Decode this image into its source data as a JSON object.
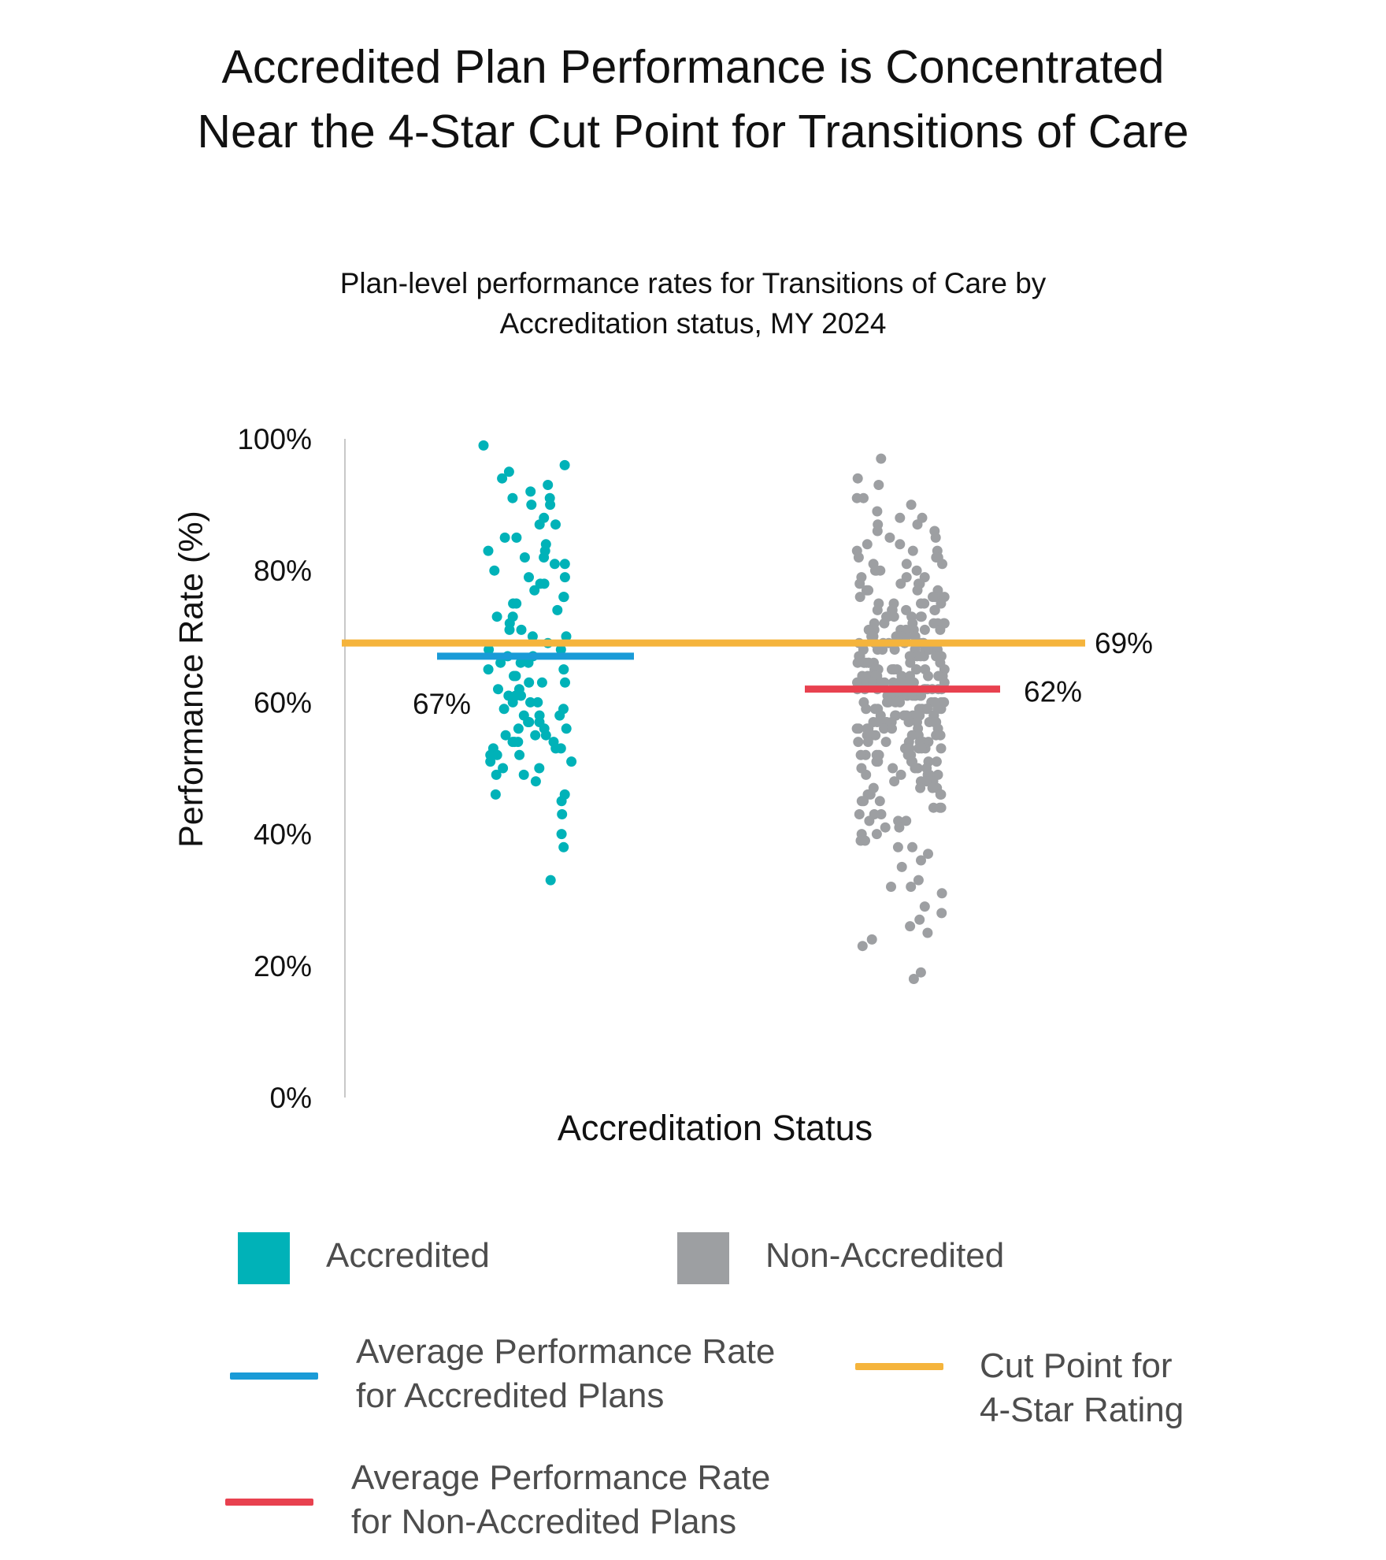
{
  "title": [
    "Accredited Plan Performance is Concentrated",
    "Near the 4-Star Cut Point for Transitions of Care"
  ],
  "subtitle": [
    "Plan-level performance rates for Transitions of Care by",
    "Accreditation status, MY 2024"
  ],
  "colors": {
    "accredited": "#00b2b8",
    "non_accredited": "#9d9fa2",
    "avg_accredited": "#1a9bd7",
    "avg_non_accredited": "#e8414f",
    "cut_point": "#f5b43c",
    "axis": "#c8c8c8"
  },
  "chart_data": {
    "type": "scatter",
    "xlabel": "Accreditation Status",
    "ylabel": "Performance Rate (%)",
    "ylim": [
      0,
      100
    ],
    "yticks": [
      "0%",
      "20%",
      "40%",
      "60%",
      "80%",
      "100%"
    ],
    "grid": false,
    "cut_point": {
      "value": 69,
      "label": "69%"
    },
    "averages": [
      {
        "group": "Accredited",
        "value": 67,
        "label": "67%"
      },
      {
        "group": "Non-Accredited",
        "value": 62,
        "label": "62%"
      }
    ],
    "series": [
      {
        "name": "Accredited",
        "values": [
          99,
          96,
          95,
          94,
          93,
          92,
          91,
          91,
          90,
          90,
          88,
          87,
          87,
          85,
          85,
          84,
          83,
          83,
          82,
          82,
          81,
          81,
          80,
          79,
          79,
          78,
          78,
          77,
          76,
          76,
          75,
          75,
          74,
          73,
          73,
          72,
          71,
          71,
          70,
          70,
          69,
          68,
          68,
          67,
          67,
          66,
          66,
          66,
          65,
          65,
          64,
          64,
          63,
          63,
          63,
          62,
          62,
          61,
          61,
          61,
          60,
          60,
          60,
          59,
          59,
          58,
          58,
          58,
          57,
          57,
          57,
          56,
          56,
          56,
          55,
          55,
          55,
          54,
          54,
          54,
          54,
          53,
          53,
          53,
          52,
          52,
          52,
          51,
          51,
          50,
          50,
          49,
          49,
          48,
          46,
          46,
          45,
          43,
          40,
          38,
          33
        ]
      },
      {
        "name": "Non-Accredited",
        "values": [
          97,
          94,
          93,
          91,
          91,
          90,
          89,
          88,
          88,
          87,
          87,
          86,
          86,
          85,
          85,
          84,
          84,
          83,
          83,
          83,
          82,
          82,
          82,
          81,
          81,
          81,
          80,
          80,
          80,
          80,
          79,
          79,
          79,
          78,
          78,
          78,
          78,
          77,
          77,
          77,
          77,
          76,
          76,
          76,
          76,
          76,
          75,
          75,
          75,
          75,
          75,
          74,
          74,
          74,
          74,
          74,
          74,
          73,
          73,
          73,
          73,
          73,
          73,
          72,
          72,
          72,
          72,
          72,
          72,
          72,
          71,
          71,
          71,
          71,
          71,
          71,
          71,
          70,
          70,
          70,
          70,
          70,
          70,
          70,
          70,
          69,
          69,
          69,
          69,
          69,
          69,
          69,
          69,
          68,
          68,
          68,
          68,
          68,
          68,
          68,
          68,
          67,
          67,
          67,
          67,
          67,
          67,
          67,
          67,
          67,
          66,
          66,
          66,
          66,
          66,
          66,
          66,
          66,
          66,
          65,
          65,
          65,
          65,
          65,
          65,
          65,
          65,
          65,
          65,
          64,
          64,
          64,
          64,
          64,
          64,
          64,
          64,
          64,
          64,
          63,
          63,
          63,
          63,
          63,
          63,
          63,
          63,
          63,
          63,
          63,
          62,
          62,
          62,
          62,
          62,
          62,
          62,
          62,
          62,
          62,
          62,
          61,
          61,
          61,
          61,
          61,
          61,
          61,
          61,
          61,
          61,
          61,
          60,
          60,
          60,
          60,
          60,
          60,
          60,
          60,
          60,
          60,
          60,
          59,
          59,
          59,
          59,
          59,
          59,
          59,
          59,
          59,
          59,
          58,
          58,
          58,
          58,
          58,
          58,
          58,
          58,
          58,
          58,
          57,
          57,
          57,
          57,
          57,
          57,
          57,
          57,
          57,
          56,
          56,
          56,
          56,
          56,
          56,
          56,
          56,
          55,
          55,
          55,
          55,
          55,
          55,
          55,
          55,
          54,
          54,
          54,
          54,
          54,
          54,
          54,
          53,
          53,
          53,
          53,
          53,
          53,
          53,
          52,
          52,
          52,
          52,
          52,
          52,
          51,
          51,
          51,
          51,
          51,
          51,
          50,
          50,
          50,
          50,
          50,
          49,
          49,
          49,
          49,
          49,
          48,
          48,
          48,
          48,
          47,
          47,
          47,
          47,
          46,
          46,
          46,
          46,
          45,
          45,
          45,
          44,
          44,
          44,
          43,
          43,
          43,
          42,
          42,
          42,
          41,
          41,
          40,
          40,
          39,
          39,
          38,
          38,
          37,
          36,
          35,
          33,
          32,
          32,
          31,
          29,
          28,
          27,
          26,
          25,
          24,
          23,
          19,
          18
        ]
      }
    ]
  },
  "legend": {
    "accredited": "Accredited",
    "non_accredited": "Non-Accredited",
    "avg_accredited": [
      "Average Performance Rate",
      "for Accredited Plans"
    ],
    "avg_non_accredited": [
      "Average Performance Rate",
      "for Non-Accredited Plans"
    ],
    "cut_point": [
      "Cut Point for",
      "4-Star Rating"
    ]
  }
}
